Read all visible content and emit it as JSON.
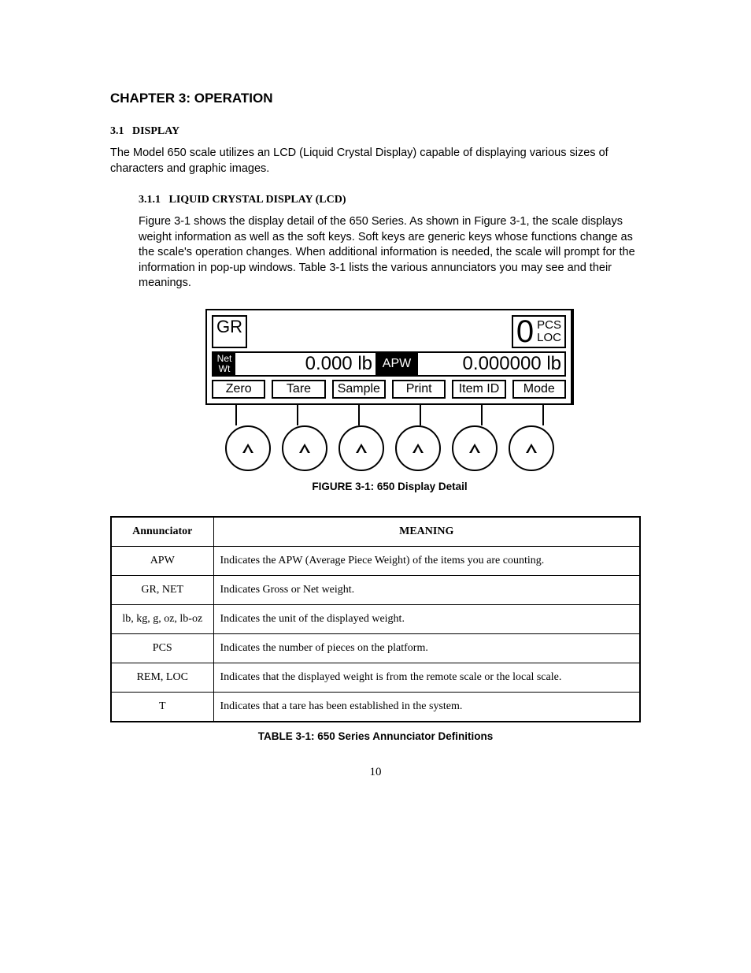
{
  "chapter_title": "CHAPTER 3: OPERATION",
  "section": {
    "num": "3.1",
    "title": "DISPLAY"
  },
  "section_para": "The Model 650 scale utilizes an LCD (Liquid Crystal Display) capable of displaying various sizes of characters and graphic images.",
  "subsection": {
    "num": "3.1.1",
    "title": "LIQUID CRYSTAL DISPLAY (LCD)"
  },
  "subsection_para": "Figure 3-1 shows the display detail of the 650 Series. As shown in Figure 3-1, the scale displays weight information as well as the soft keys. Soft keys are generic keys whose functions change as the scale's operation changes. When additional information is needed, the scale will prompt for the information in pop-up windows. Table 3-1 lists the various annunciators you may see and their meanings.",
  "lcd": {
    "gr": "GR",
    "count": "0",
    "pcs": "PCS",
    "loc": "LOC",
    "net": "Net",
    "wt": "Wt",
    "weight": "0.000 lb",
    "apw_label": "APW",
    "apw_value": "0.000000 lb",
    "softkeys": [
      "Zero",
      "Tare",
      "Sample",
      "Print",
      "Item ID",
      "Mode"
    ]
  },
  "figure_caption": "FIGURE 3-1: 650 Display Detail",
  "table": {
    "headers": [
      "Annunciator",
      "MEANING"
    ],
    "rows": [
      [
        "APW",
        "Indicates the APW (Average Piece Weight) of the items you are counting."
      ],
      [
        "GR, NET",
        "Indicates Gross or Net weight."
      ],
      [
        "lb, kg, g, oz, lb-oz",
        "Indicates the unit of the displayed weight."
      ],
      [
        "PCS",
        "Indicates the number of pieces on the platform."
      ],
      [
        "REM, LOC",
        "Indicates that the displayed weight is from the remote scale or the local scale."
      ],
      [
        "T",
        "Indicates that a tare has been established in the system."
      ]
    ]
  },
  "table_caption": "TABLE 3-1: 650 Series Annunciator Definitions",
  "page_number": "10"
}
